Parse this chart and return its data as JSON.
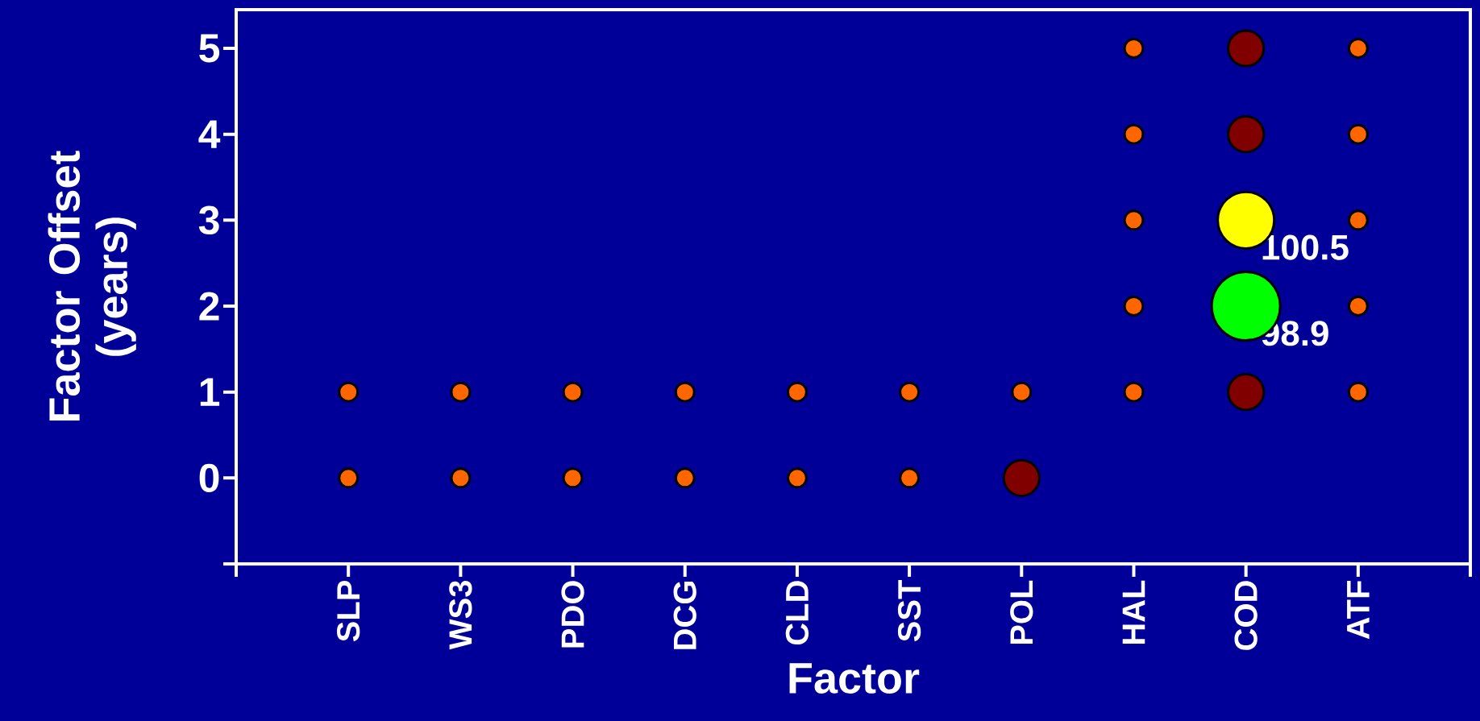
{
  "chart_data": {
    "type": "bubble",
    "xlabel": "Factor",
    "ylabel": "Factor Offset (years)",
    "categories": [
      "SLP",
      "WS3",
      "PDO",
      "DCG",
      "CLD",
      "SST",
      "POL",
      "HAL",
      "COD",
      "ATF"
    ],
    "ylim": [
      -1,
      5.45
    ],
    "yticks": [
      {
        "value": -1,
        "label": null
      },
      0,
      1,
      2,
      3,
      4,
      5
    ],
    "marker": "circle",
    "grid": false,
    "series": [
      {
        "color": "#ff6600",
        "x": [
          "SLP",
          "SLP",
          "WS3",
          "WS3",
          "PDO",
          "PDO",
          "DCG",
          "DCG",
          "CLD",
          "CLD",
          "SST",
          "SST",
          "POL",
          "HAL",
          "HAL",
          "HAL",
          "HAL",
          "HAL",
          "ATF",
          "ATF",
          "ATF",
          "ATF",
          "ATF"
        ],
        "values": [
          0,
          1,
          0,
          1,
          0,
          1,
          0,
          1,
          0,
          1,
          0,
          1,
          1,
          1,
          2,
          3,
          4,
          5,
          1,
          2,
          3,
          4,
          5
        ],
        "sizes": [
          0.073,
          0.073,
          0.073,
          0.073,
          0.073,
          0.073,
          0.073,
          0.073,
          0.073,
          0.073,
          0.073,
          0.073,
          0.073,
          0.073,
          0.073,
          0.073,
          0.073,
          0.073,
          0.073,
          0.073,
          0.073,
          0.073,
          0.073
        ]
      },
      {
        "color": "#800000",
        "x": [
          "POL",
          "COD",
          "COD",
          "COD"
        ],
        "values": [
          0,
          1,
          4,
          5
        ],
        "sizes": [
          0.27,
          0.27,
          0.27,
          0.27
        ]
      },
      {
        "color": "#ffff00",
        "x": [
          "COD"
        ],
        "values": [
          3
        ],
        "sizes": [
          0.68
        ]
      },
      {
        "color": "#00ff00",
        "x": [
          "COD"
        ],
        "values": [
          2
        ],
        "sizes": [
          1
        ]
      }
    ],
    "annotations": [
      {
        "text": "100.5",
        "x": "COD",
        "y": 3
      },
      {
        "text": "98.9",
        "x": "COD",
        "y": 2
      }
    ]
  }
}
